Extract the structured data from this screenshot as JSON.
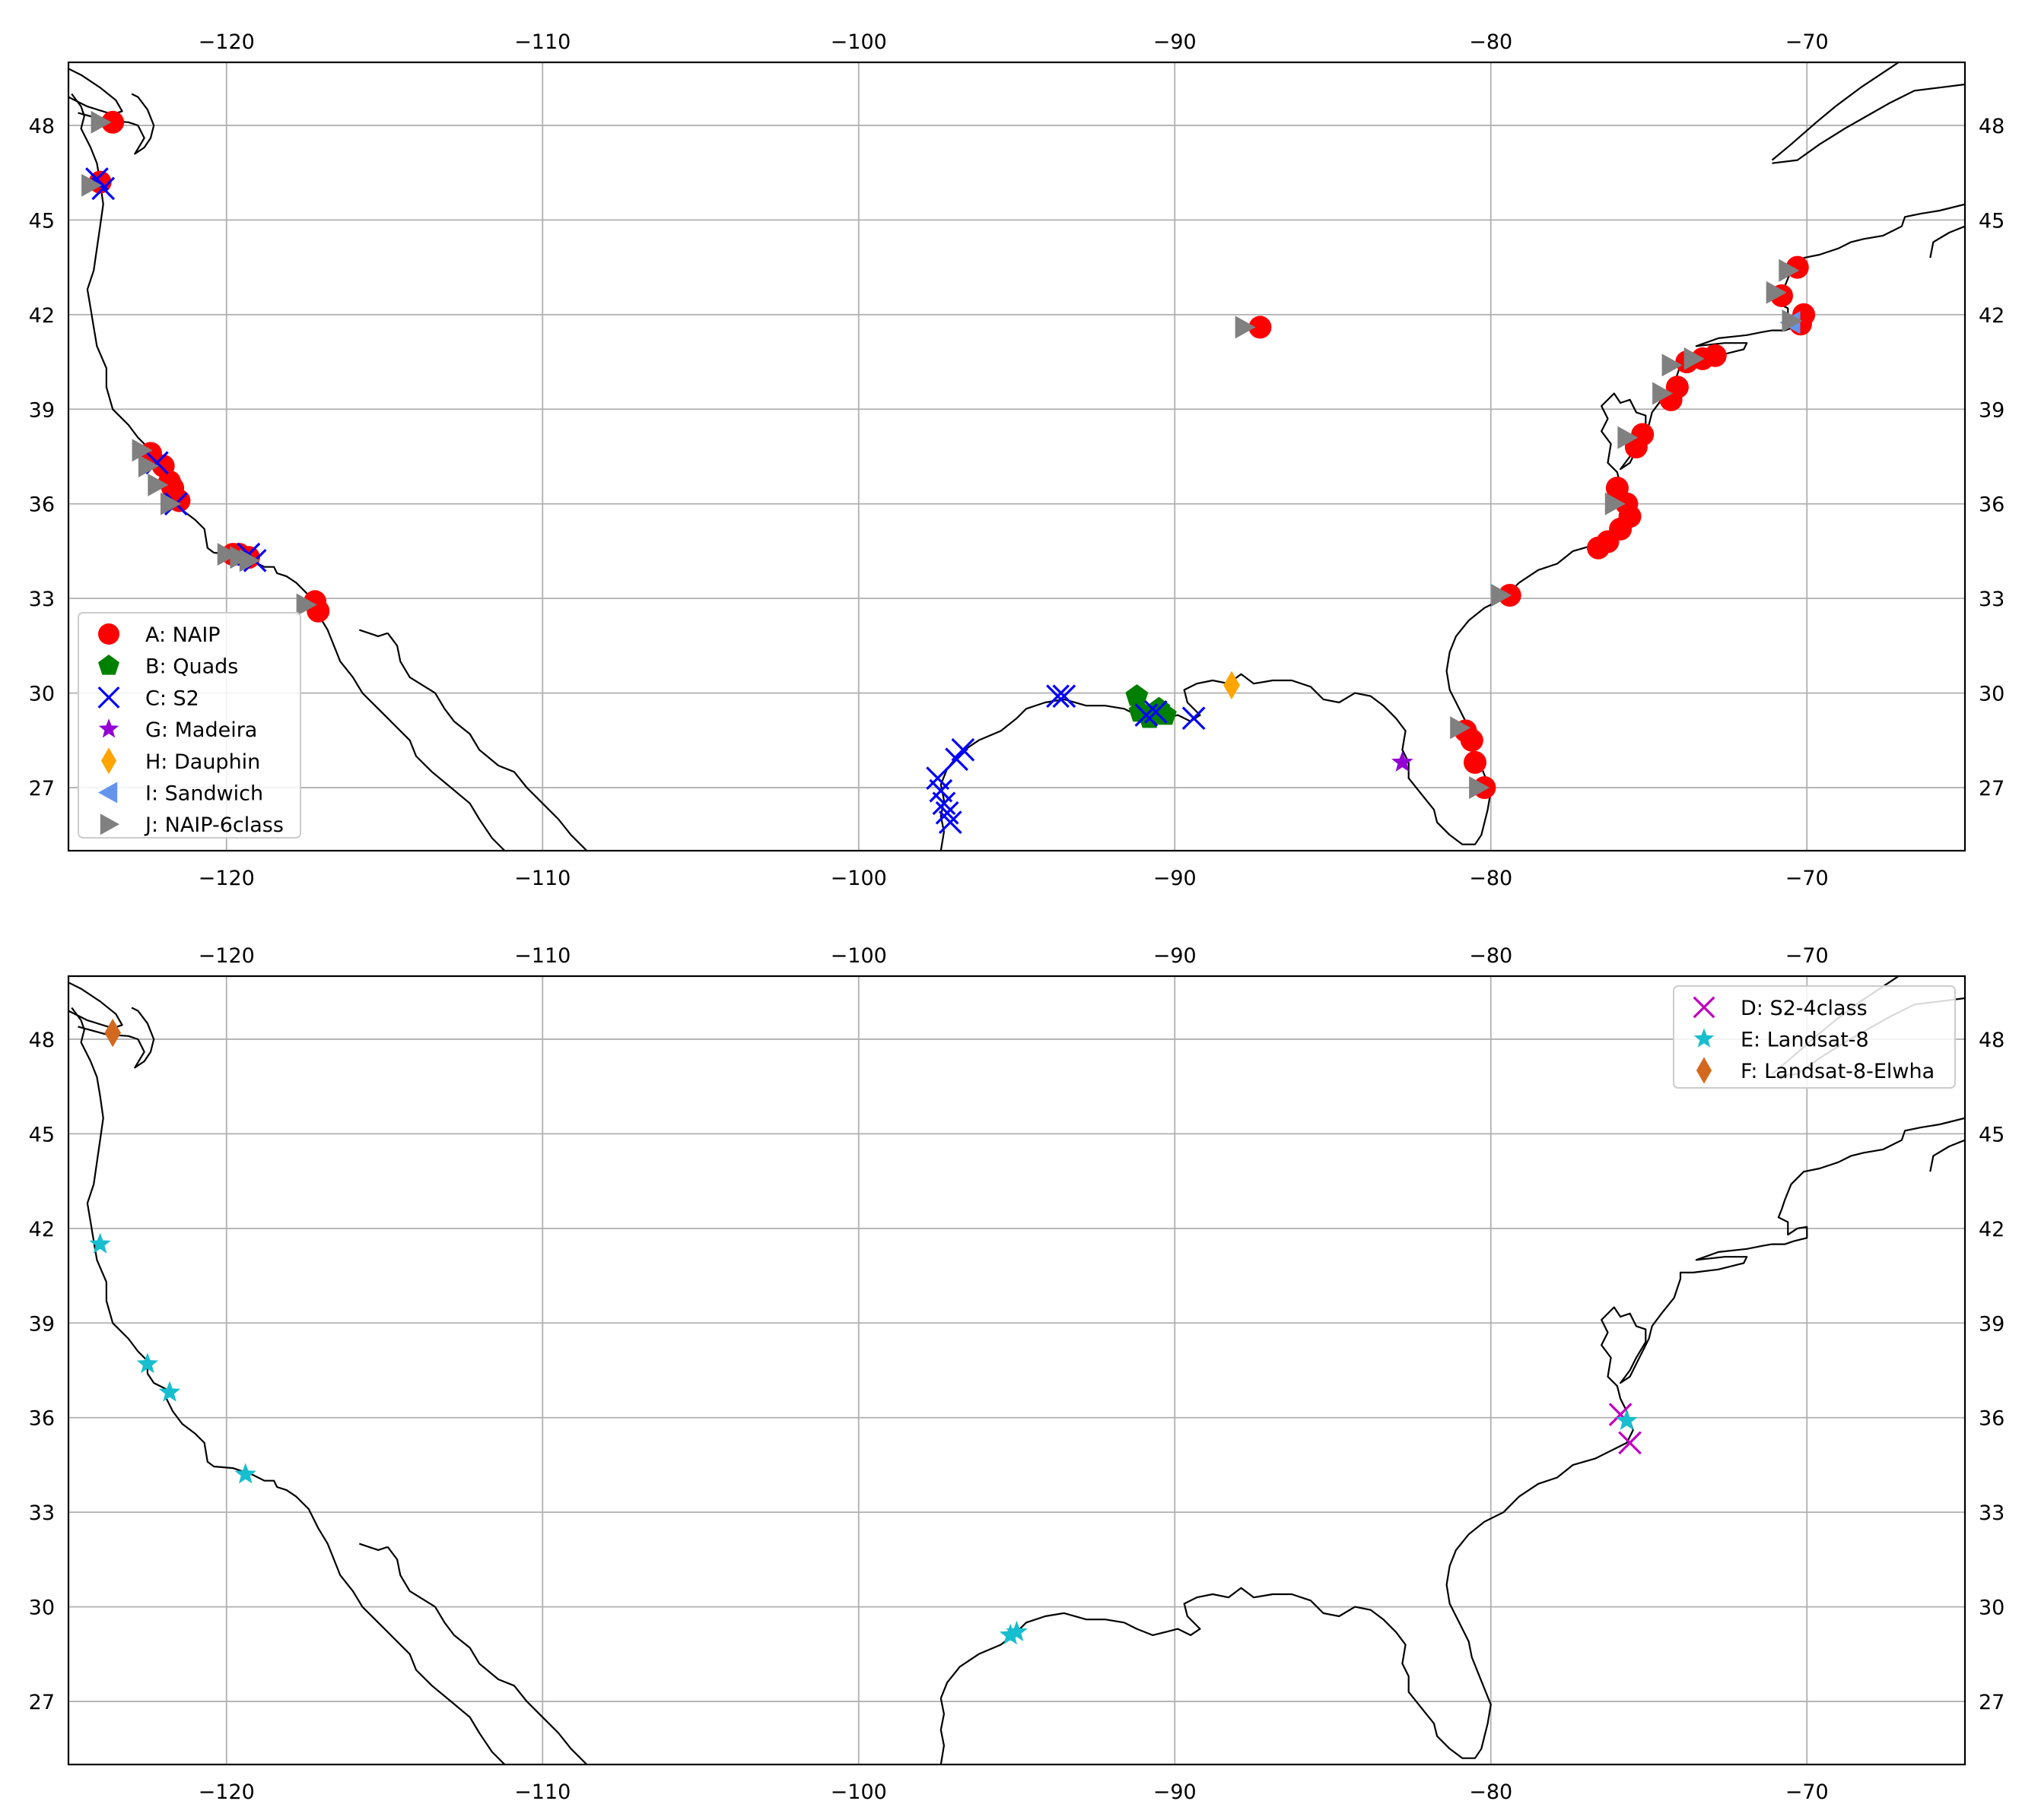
{
  "colors": {
    "grid": "#b0b0b0",
    "coast": "#000000",
    "A": "#ff0000",
    "B": "#008000",
    "C": "#0000ff",
    "D": "#bf00bf",
    "E": "#17becf",
    "F": "#d2691e",
    "G": "#9400d3",
    "H": "#ffa500",
    "I": "#6495ed",
    "J": "#808080"
  },
  "chart_data": [
    {
      "type": "scatter",
      "panel": "top",
      "xlim": [
        -125,
        -65
      ],
      "ylim": [
        25,
        50
      ],
      "xticks": [
        -120,
        -110,
        -100,
        -90,
        -80,
        -70
      ],
      "yticks": [
        27,
        30,
        33,
        36,
        39,
        42,
        45,
        48
      ],
      "xtick_labels": [
        "−120",
        "−110",
        "−100",
        "−90",
        "−80",
        "−70"
      ],
      "ytick_labels": [
        "27",
        "30",
        "33",
        "36",
        "39",
        "42",
        "45",
        "48"
      ],
      "grid": true,
      "legend_position": "lower-left",
      "series": [
        {
          "key": "A",
          "name": "A: NAIP",
          "marker": "circle",
          "color": "#ff0000",
          "points": [
            [
              -123.6,
              48.1
            ],
            [
              -124.0,
              46.2
            ],
            [
              -122.4,
              37.6
            ],
            [
              -122.0,
              37.2
            ],
            [
              -121.8,
              36.7
            ],
            [
              -121.7,
              36.5
            ],
            [
              -121.5,
              36.1
            ],
            [
              -119.8,
              34.4
            ],
            [
              -119.6,
              34.4
            ],
            [
              -119.3,
              34.3
            ],
            [
              -117.2,
              32.9
            ],
            [
              -117.1,
              32.6
            ],
            [
              -87.3,
              41.6
            ],
            [
              -79.4,
              33.1
            ],
            [
              -80.8,
              28.8
            ],
            [
              -80.6,
              28.5
            ],
            [
              -80.5,
              27.8
            ],
            [
              -80.2,
              27.0
            ],
            [
              -76.6,
              34.6
            ],
            [
              -76.3,
              34.8
            ],
            [
              -75.9,
              35.2
            ],
            [
              -75.6,
              35.6
            ],
            [
              -76.0,
              36.5
            ],
            [
              -75.7,
              36.0
            ],
            [
              -75.4,
              37.8
            ],
            [
              -75.2,
              38.2
            ],
            [
              -74.3,
              39.3
            ],
            [
              -74.1,
              39.7
            ],
            [
              -73.8,
              40.5
            ],
            [
              -73.3,
              40.6
            ],
            [
              -72.9,
              40.7
            ],
            [
              -70.3,
              43.5
            ],
            [
              -70.8,
              42.6
            ],
            [
              -70.1,
              42.0
            ],
            [
              -70.2,
              41.7
            ]
          ]
        },
        {
          "key": "B",
          "name": "B: Quads",
          "marker": "pentagon",
          "color": "#008000",
          "points": [
            [
              -91.2,
              29.9
            ],
            [
              -91.1,
              29.4
            ],
            [
              -90.8,
              29.2
            ],
            [
              -90.5,
              29.5
            ],
            [
              -90.3,
              29.3
            ]
          ]
        },
        {
          "key": "C",
          "name": "C: S2",
          "marker": "x",
          "color": "#0000ff",
          "points": [
            [
              -124.1,
              46.3
            ],
            [
              -123.9,
              46.0
            ],
            [
              -122.2,
              37.3
            ],
            [
              -121.6,
              36.0
            ],
            [
              -119.3,
              34.4
            ],
            [
              -119.1,
              34.2
            ],
            [
              -97.5,
              27.3
            ],
            [
              -97.4,
              26.9
            ],
            [
              -97.3,
              26.5
            ],
            [
              -97.2,
              26.2
            ],
            [
              -97.1,
              25.9
            ],
            [
              -96.9,
              27.9
            ],
            [
              -96.7,
              28.2
            ],
            [
              -93.7,
              29.9
            ],
            [
              -93.5,
              29.9
            ],
            [
              -90.9,
              29.3
            ],
            [
              -90.6,
              29.4
            ],
            [
              -89.4,
              29.2
            ]
          ]
        },
        {
          "key": "G",
          "name": "G: Madeira",
          "marker": "star",
          "color": "#9400d3",
          "points": [
            [
              -82.8,
              27.8
            ]
          ]
        },
        {
          "key": "H",
          "name": "H: Dauphin",
          "marker": "diamond",
          "color": "#ffa500",
          "points": [
            [
              -88.2,
              30.25
            ]
          ]
        },
        {
          "key": "I",
          "name": "I: Sandwich",
          "marker": "triangle-left",
          "color": "#6495ed",
          "points": [
            [
              -70.5,
              41.75
            ]
          ]
        },
        {
          "key": "J",
          "name": "J: NAIP-6class",
          "marker": "triangle-right",
          "color": "#808080",
          "points": [
            [
              -124.0,
              48.1
            ],
            [
              -124.3,
              46.1
            ],
            [
              -122.7,
              37.7
            ],
            [
              -122.5,
              37.2
            ],
            [
              -122.2,
              36.6
            ],
            [
              -121.8,
              36.0
            ],
            [
              -120.0,
              34.4
            ],
            [
              -119.6,
              34.3
            ],
            [
              -119.3,
              34.2
            ],
            [
              -117.5,
              32.8
            ],
            [
              -87.8,
              41.6
            ],
            [
              -79.7,
              33.1
            ],
            [
              -81.0,
              28.9
            ],
            [
              -80.4,
              27.0
            ],
            [
              -76.1,
              36.0
            ],
            [
              -75.7,
              38.1
            ],
            [
              -74.6,
              39.5
            ],
            [
              -74.3,
              40.4
            ],
            [
              -73.6,
              40.6
            ],
            [
              -71.0,
              42.7
            ],
            [
              -70.6,
              43.4
            ],
            [
              -70.5,
              41.8
            ]
          ]
        }
      ]
    },
    {
      "type": "scatter",
      "panel": "bottom",
      "xlim": [
        -125,
        -65
      ],
      "ylim": [
        25,
        50
      ],
      "xticks": [
        -120,
        -110,
        -100,
        -90,
        -80,
        -70
      ],
      "yticks": [
        27,
        30,
        33,
        36,
        39,
        42,
        45,
        48
      ],
      "xtick_labels": [
        "−120",
        "−110",
        "−100",
        "−90",
        "−80",
        "−70"
      ],
      "ytick_labels": [
        "27",
        "30",
        "33",
        "36",
        "39",
        "42",
        "45",
        "48"
      ],
      "grid": true,
      "legend_position": "upper-right",
      "series": [
        {
          "key": "D",
          "name": "D: S2-4class",
          "marker": "x",
          "color": "#bf00bf",
          "points": [
            [
              -75.9,
              36.1
            ],
            [
              -75.6,
              35.2
            ]
          ]
        },
        {
          "key": "E",
          "name": "E: Landsat-8",
          "marker": "star",
          "color": "#17becf",
          "points": [
            [
              -124.0,
              41.5
            ],
            [
              -122.5,
              37.7
            ],
            [
              -121.8,
              36.8
            ],
            [
              -119.4,
              34.2
            ],
            [
              -95.2,
              29.1
            ],
            [
              -95.0,
              29.2
            ],
            [
              -75.7,
              35.9
            ]
          ]
        },
        {
          "key": "F",
          "name": "F: Landsat-8-Elwha",
          "marker": "diamond",
          "color": "#d2691e",
          "points": [
            [
              -123.6,
              48.2
            ]
          ]
        }
      ]
    }
  ]
}
